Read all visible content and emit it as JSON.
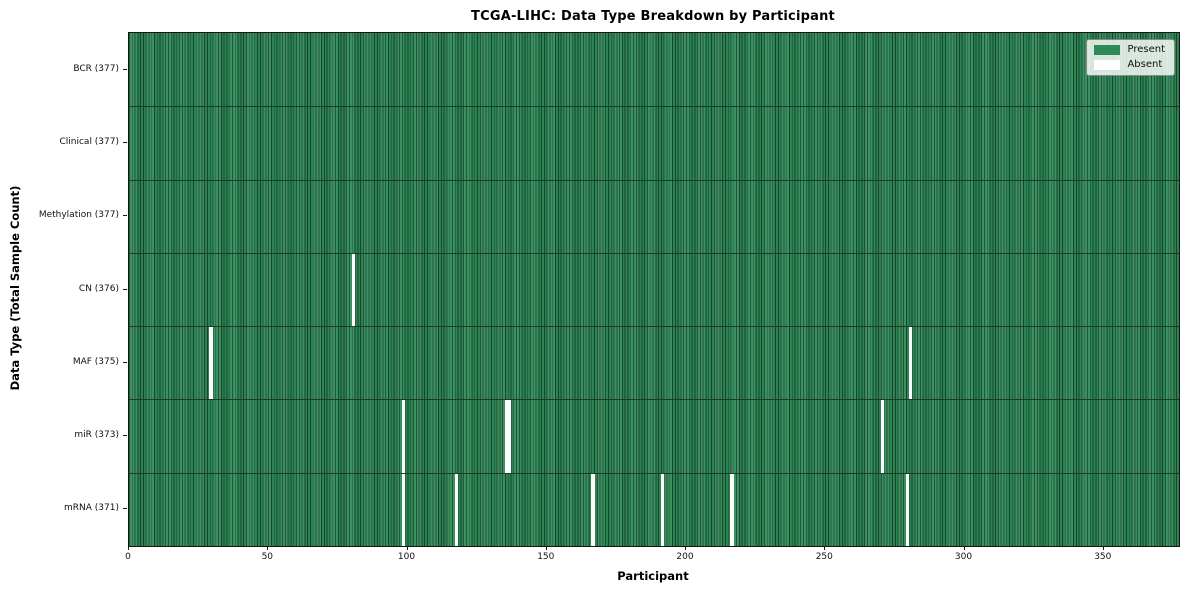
{
  "title": "TCGA-LIHC: Data Type Breakdown by Participant",
  "chart_data": {
    "type": "heatmap",
    "title": "TCGA-LIHC: Data Type Breakdown by Participant",
    "xlabel": "Participant",
    "ylabel": "Data Type (Total Sample Count)",
    "x_ticks": [
      0,
      50,
      100,
      150,
      200,
      250,
      300,
      350
    ],
    "x_range": [
      0,
      377
    ],
    "n_participants": 377,
    "grid": false,
    "colors": {
      "present": "#2e8b57",
      "absent": "#fdfdfd",
      "cell_edge": "#17492e",
      "row_divider": "#1c3b26"
    },
    "legend": {
      "position": "upper right",
      "entries": [
        {
          "label": "Present",
          "color": "#2e8b57"
        },
        {
          "label": "Absent",
          "color": "#ffffff"
        }
      ]
    },
    "rows": [
      {
        "label": "BCR (377)",
        "data_type": "BCR",
        "total": 377,
        "absent_participants": []
      },
      {
        "label": "Clinical (377)",
        "data_type": "Clinical",
        "total": 377,
        "absent_participants": []
      },
      {
        "label": "Methylation (377)",
        "data_type": "Methylation",
        "total": 377,
        "absent_participants": []
      },
      {
        "label": "CN (376)",
        "data_type": "CN",
        "total": 376,
        "absent_participants": [
          80
        ]
      },
      {
        "label": "MAF (375)",
        "data_type": "MAF",
        "total": 375,
        "absent_participants": [
          29,
          280
        ]
      },
      {
        "label": "miR (373)",
        "data_type": "miR",
        "total": 373,
        "absent_participants": [
          98,
          135,
          136,
          270
        ]
      },
      {
        "label": "mRNA (371)",
        "data_type": "mRNA",
        "total": 371,
        "absent_participants": [
          98,
          117,
          166,
          191,
          216,
          279
        ]
      }
    ]
  }
}
